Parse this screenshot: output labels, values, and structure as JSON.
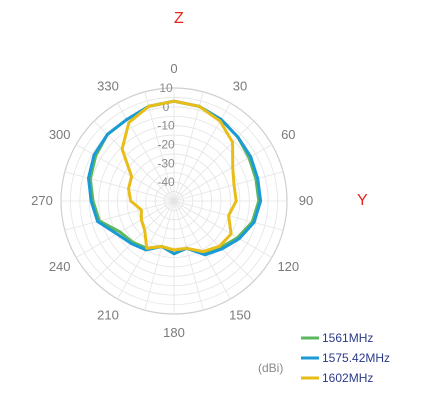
{
  "axis_labels": {
    "z": "Z",
    "y": "Y"
  },
  "chart_data": {
    "type": "polar-line",
    "unit": "(dBi)",
    "rlim": [
      -50,
      10
    ],
    "radial_ticks": [
      "10",
      "0",
      "-10",
      "-20",
      "-30",
      "-40"
    ],
    "radial_tick_values": [
      10,
      0,
      -10,
      -20,
      -30,
      -40
    ],
    "angle_ticks": [
      "0",
      "30",
      "60",
      "90",
      "120",
      "150",
      "180",
      "210",
      "240",
      "270",
      "300",
      "330"
    ],
    "angle_tick_values": [
      0,
      30,
      60,
      90,
      120,
      150,
      180,
      210,
      240,
      270,
      300,
      330
    ],
    "grid": true,
    "legend_position": "bottom-right",
    "theta": [
      0,
      15,
      30,
      45,
      60,
      75,
      90,
      105,
      120,
      135,
      150,
      165,
      180,
      195,
      210,
      225,
      240,
      255,
      270,
      285,
      300,
      315,
      330,
      345
    ],
    "series": [
      {
        "name": "1561MHz",
        "color": "#5cb85c",
        "r": [
          3,
          2,
          0,
          -2,
          -4,
          -5,
          -5,
          -7,
          -11,
          -15,
          -18,
          -24,
          -22,
          -25,
          -21,
          -19,
          -17,
          -9,
          -7,
          -4,
          -2,
          0,
          0,
          2
        ]
      },
      {
        "name": "1575.42MHz",
        "color": "#1b9ad6",
        "r": [
          3,
          2,
          0,
          -2,
          -3,
          -4,
          -4,
          -6,
          -10,
          -14,
          -17,
          -24,
          -22,
          -25,
          -20,
          -18,
          -15,
          -8,
          -6,
          -3,
          -1,
          0,
          0,
          2
        ]
      },
      {
        "name": "1602MHz",
        "color": "#e9bd18",
        "r": [
          3,
          2,
          -1,
          -6,
          -14,
          -17,
          -17,
          -20,
          -15,
          -16,
          -19,
          -24,
          -24,
          -25,
          -21,
          -28,
          -30,
          -32,
          -27,
          -25,
          -24,
          -11,
          -2,
          2
        ]
      }
    ]
  }
}
